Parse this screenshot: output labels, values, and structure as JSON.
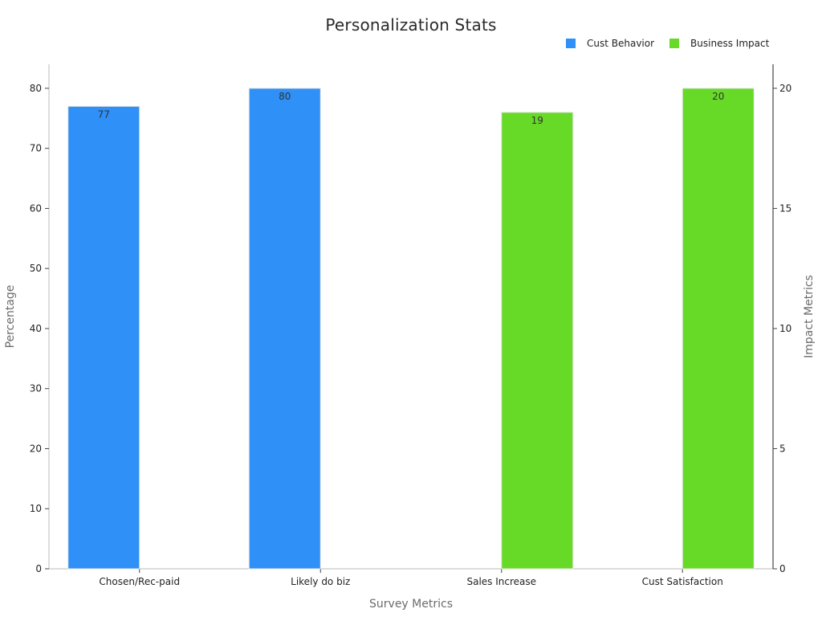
{
  "chart_data": {
    "type": "bar",
    "title": "Personalization Stats",
    "xlabel": "Survey Metrics",
    "ylabel": "Percentage",
    "y2label": "Impact Metrics",
    "categories": [
      "Chosen/Rec-paid",
      "Likely do biz",
      "Sales Increase",
      "Cust Satisfaction"
    ],
    "series": [
      {
        "name": "Cust Behavior",
        "axis": "left",
        "color": "#2f90f7",
        "values": [
          77,
          80,
          null,
          null
        ]
      },
      {
        "name": "Business Impact",
        "axis": "right",
        "color": "#66da27",
        "values": [
          null,
          null,
          19,
          20
        ]
      }
    ],
    "ylim": [
      0,
      84
    ],
    "y2lim": [
      0,
      21
    ],
    "yticks": [
      0,
      10,
      20,
      30,
      40,
      50,
      60,
      70,
      80
    ],
    "y2ticks": [
      0,
      5,
      10,
      15,
      20
    ],
    "grid": false,
    "legend_position": "top-right"
  }
}
